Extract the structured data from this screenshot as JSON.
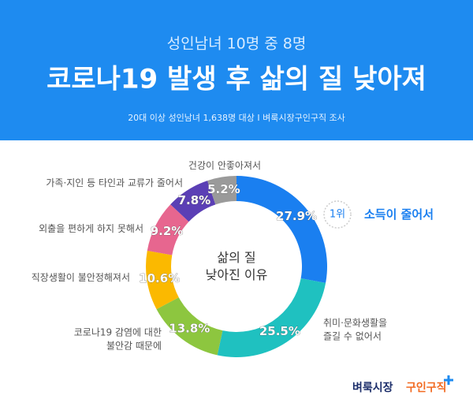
{
  "chart_data": {
    "type": "donut",
    "subtitle": "성인남녀 10명 중 8명",
    "title": "코로나19 발생 후 삶의 질 낮아져",
    "source": "20대 이상 성인남녀 1,638명 대상  I  벼룩시장구인구직 조사",
    "center_label": "삶의 질\n낮아진 이유",
    "annotation": "1위",
    "categories": [
      "소득이 줄어서",
      "취미·문화생활을\n즐길 수 없어서",
      "코로나19 감염에 대한\n불안감 때문에",
      "직장생활이 불안정해져서",
      "외출을 편하게 하지 못해서",
      "가족·지인 등 타인과 교류가 줄어서",
      "건강이 안좋아져서"
    ],
    "values": [
      27.9,
      25.5,
      13.8,
      10.6,
      9.2,
      7.8,
      5.2
    ],
    "value_labels": [
      "27.9%",
      "25.5%",
      "13.8%",
      "10.6%",
      "9.2%",
      "7.8%",
      "5.2%"
    ],
    "colors": [
      "#1a7ff0",
      "#1fc1c0",
      "#8dc63f",
      "#fbb900",
      "#e7668f",
      "#5b3fb5",
      "#9a9a9a"
    ]
  },
  "brand": {
    "name": "벼룩시장",
    "service": "구인구직"
  }
}
